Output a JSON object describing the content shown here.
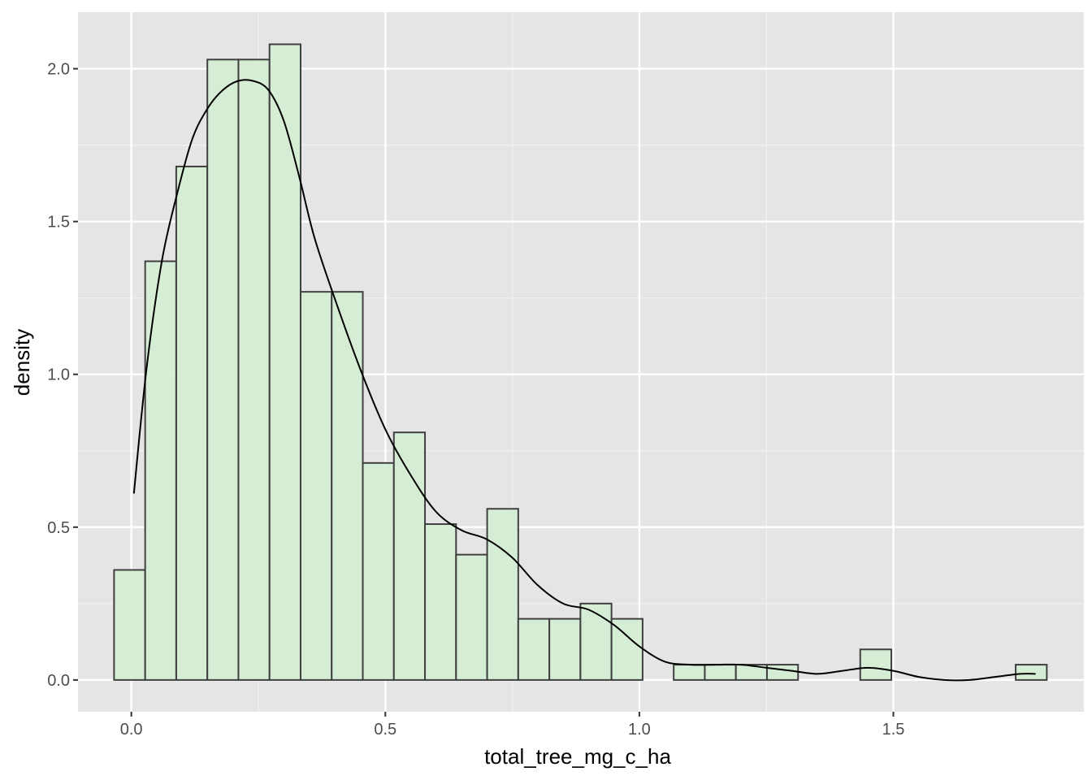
{
  "chart_data": {
    "type": "bar",
    "xlabel": "total_tree_mg_c_ha",
    "ylabel": "density",
    "xlim": [
      -0.105,
      1.875
    ],
    "ylim": [
      -0.104,
      2.185
    ],
    "grid": true,
    "x_ticks": [
      {
        "value": 0.0,
        "label": "0.0"
      },
      {
        "value": 0.5,
        "label": "0.5"
      },
      {
        "value": 1.0,
        "label": "1.0"
      },
      {
        "value": 1.5,
        "label": "1.5"
      }
    ],
    "y_ticks": [
      {
        "value": 0.0,
        "label": "0.0"
      },
      {
        "value": 0.5,
        "label": "0.5"
      },
      {
        "value": 1.0,
        "label": "1.0"
      },
      {
        "value": 1.5,
        "label": "1.5"
      },
      {
        "value": 2.0,
        "label": "2.0"
      }
    ],
    "bin_width": 0.0612,
    "bin_start": -0.034,
    "values": [
      0.36,
      1.37,
      1.68,
      2.03,
      2.03,
      2.08,
      1.27,
      1.27,
      0.71,
      0.81,
      0.51,
      0.41,
      0.56,
      0.2,
      0.2,
      0.25,
      0.2,
      0.0,
      0.05,
      0.05,
      0.05,
      0.05,
      0.0,
      0.0,
      0.1,
      0.0,
      0.0,
      0.0,
      0.0,
      0.05
    ],
    "density_curve": {
      "x": [
        0.005,
        0.03,
        0.06,
        0.09,
        0.12,
        0.15,
        0.18,
        0.21,
        0.24,
        0.27,
        0.3,
        0.33,
        0.36,
        0.4,
        0.45,
        0.5,
        0.55,
        0.6,
        0.65,
        0.7,
        0.75,
        0.8,
        0.85,
        0.9,
        0.95,
        1.0,
        1.05,
        1.1,
        1.15,
        1.2,
        1.25,
        1.3,
        1.35,
        1.4,
        1.45,
        1.5,
        1.55,
        1.6,
        1.65,
        1.7,
        1.75,
        1.78
      ],
      "y": [
        0.61,
        1.02,
        1.37,
        1.59,
        1.77,
        1.87,
        1.93,
        1.96,
        1.96,
        1.93,
        1.83,
        1.65,
        1.45,
        1.25,
        1.02,
        0.82,
        0.67,
        0.55,
        0.49,
        0.46,
        0.4,
        0.31,
        0.25,
        0.23,
        0.18,
        0.11,
        0.06,
        0.05,
        0.05,
        0.05,
        0.04,
        0.03,
        0.02,
        0.03,
        0.04,
        0.03,
        0.01,
        0.0,
        0.0,
        0.01,
        0.02,
        0.02
      ]
    },
    "colors": {
      "panel_background": "#e5e5e5",
      "grid_major": "#ffffff",
      "grid_minor": "#f2f2f2",
      "bar_fill": "#d4eed4",
      "bar_fill_opacity": 0.92,
      "bar_stroke": "#404040",
      "curve": "#000000",
      "tick_label": "#4d4d4d"
    }
  }
}
